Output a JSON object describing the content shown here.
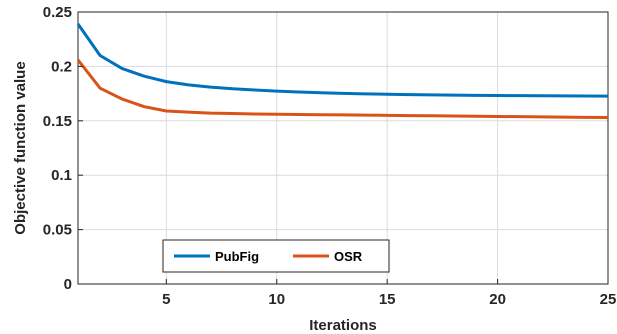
{
  "chart_data": {
    "type": "line",
    "xlabel": "Iterations",
    "ylabel": "Objective function value",
    "xlim": [
      1,
      25
    ],
    "ylim": [
      0,
      0.25
    ],
    "xticks": [
      5,
      10,
      15,
      20,
      25
    ],
    "yticks": [
      0,
      0.05,
      0.1,
      0.15,
      0.2,
      0.25
    ],
    "xtick_labels": [
      "5",
      "10",
      "15",
      "20",
      "25"
    ],
    "ytick_labels": [
      "0",
      "0.05",
      "0.1",
      "0.15",
      "0.2",
      "0.25"
    ],
    "grid": true,
    "legend_position": "bottom-left",
    "x": [
      1,
      2,
      3,
      4,
      5,
      6,
      7,
      8,
      9,
      10,
      11,
      12,
      13,
      14,
      15,
      16,
      17,
      18,
      19,
      20,
      21,
      22,
      23,
      24,
      25
    ],
    "series": [
      {
        "name": "PubFig",
        "color": "#0072BD",
        "values": [
          0.239,
          0.21,
          0.198,
          0.191,
          0.186,
          0.183,
          0.181,
          0.1795,
          0.1783,
          0.1773,
          0.1765,
          0.1758,
          0.1752,
          0.1748,
          0.1744,
          0.1741,
          0.1738,
          0.1736,
          0.1734,
          0.1732,
          0.1731,
          0.173,
          0.1729,
          0.1728,
          0.1727
        ]
      },
      {
        "name": "OSR",
        "color": "#D95319",
        "values": [
          0.206,
          0.18,
          0.17,
          0.163,
          0.159,
          0.158,
          0.157,
          0.1567,
          0.1563,
          0.156,
          0.1558,
          0.1556,
          0.1554,
          0.1552,
          0.155,
          0.1548,
          0.1546,
          0.1544,
          0.1542,
          0.154,
          0.1538,
          0.1536,
          0.1534,
          0.1532,
          0.153
        ]
      }
    ]
  }
}
